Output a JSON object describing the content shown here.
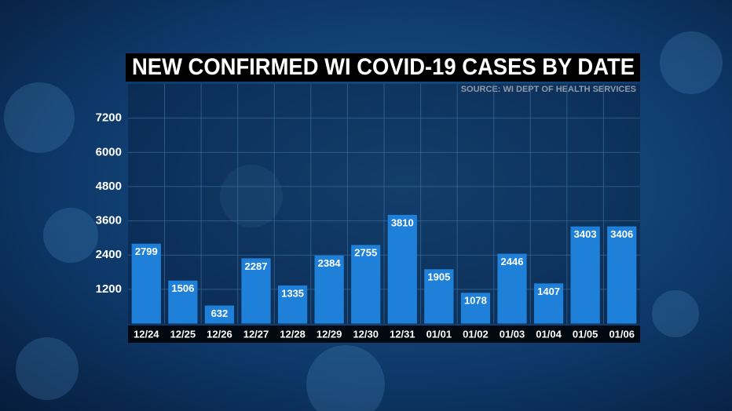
{
  "chart_data": {
    "type": "bar",
    "title": "NEW CONFIRMED WI COVID-19 CASES BY DATE",
    "subtitle": "SOURCE: WI DEPT OF HEALTH SERVICES",
    "categories": [
      "12/24",
      "12/25",
      "12/26",
      "12/27",
      "12/28",
      "12/29",
      "12/30",
      "12/31",
      "01/01",
      "01/02",
      "01/03",
      "01/04",
      "01/05",
      "01/06"
    ],
    "values": [
      2799,
      1506,
      632,
      2287,
      1335,
      2384,
      2755,
      3810,
      1905,
      1078,
      2446,
      1407,
      3403,
      3406
    ],
    "color": "#1e80d8",
    "ylim": [
      0,
      8400
    ],
    "yticks": [
      1200,
      2400,
      3600,
      4800,
      6000,
      7200
    ],
    "grid": true
  }
}
